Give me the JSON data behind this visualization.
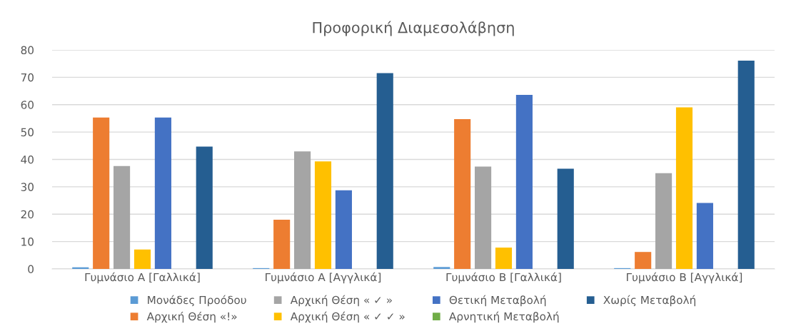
{
  "chart_data": {
    "type": "bar",
    "title": "Προφορική Διαμεσολάβηση",
    "categories": [
      "Γυμνάσιο Α [Γαλλικά]",
      "Γυμνάσιο Α [Αγγλικά]",
      "Γυμνάσιο Β [Γαλλικά]",
      "Γυμνάσιο Β [Αγγλικά]"
    ],
    "series": [
      {
        "name": "Μονάδες Προόδου",
        "color": "#5b9bd5",
        "values": [
          0.6,
          0.3,
          0.7,
          0.3
        ]
      },
      {
        "name": "Αρχική Θέση «!»",
        "color": "#ed7d31",
        "values": [
          55.3,
          18.0,
          54.7,
          6.2
        ]
      },
      {
        "name": "Αρχική Θέση « ✓ »",
        "color": "#a5a5a5",
        "values": [
          37.6,
          42.9,
          37.4,
          35.0
        ]
      },
      {
        "name": "Αρχική Θέση « ✓ ✓ »",
        "color": "#ffc000",
        "values": [
          7.1,
          39.3,
          7.8,
          59.0
        ]
      },
      {
        "name": "Θετική Μεταβολή",
        "color": "#4472c4",
        "values": [
          55.3,
          28.7,
          63.6,
          24.1
        ]
      },
      {
        "name": "Αρνητική Μεταβολή",
        "color": "#70ad47",
        "values": [
          0,
          0,
          0,
          0
        ]
      },
      {
        "name": "Χωρίς Μεταβολή",
        "color": "#255e91",
        "values": [
          44.7,
          71.5,
          36.6,
          76.1
        ]
      }
    ],
    "ylim": [
      0,
      80
    ],
    "yticks": [
      0,
      10,
      20,
      30,
      40,
      50,
      60,
      70,
      80
    ],
    "grid": "y",
    "legend": "bottom"
  }
}
